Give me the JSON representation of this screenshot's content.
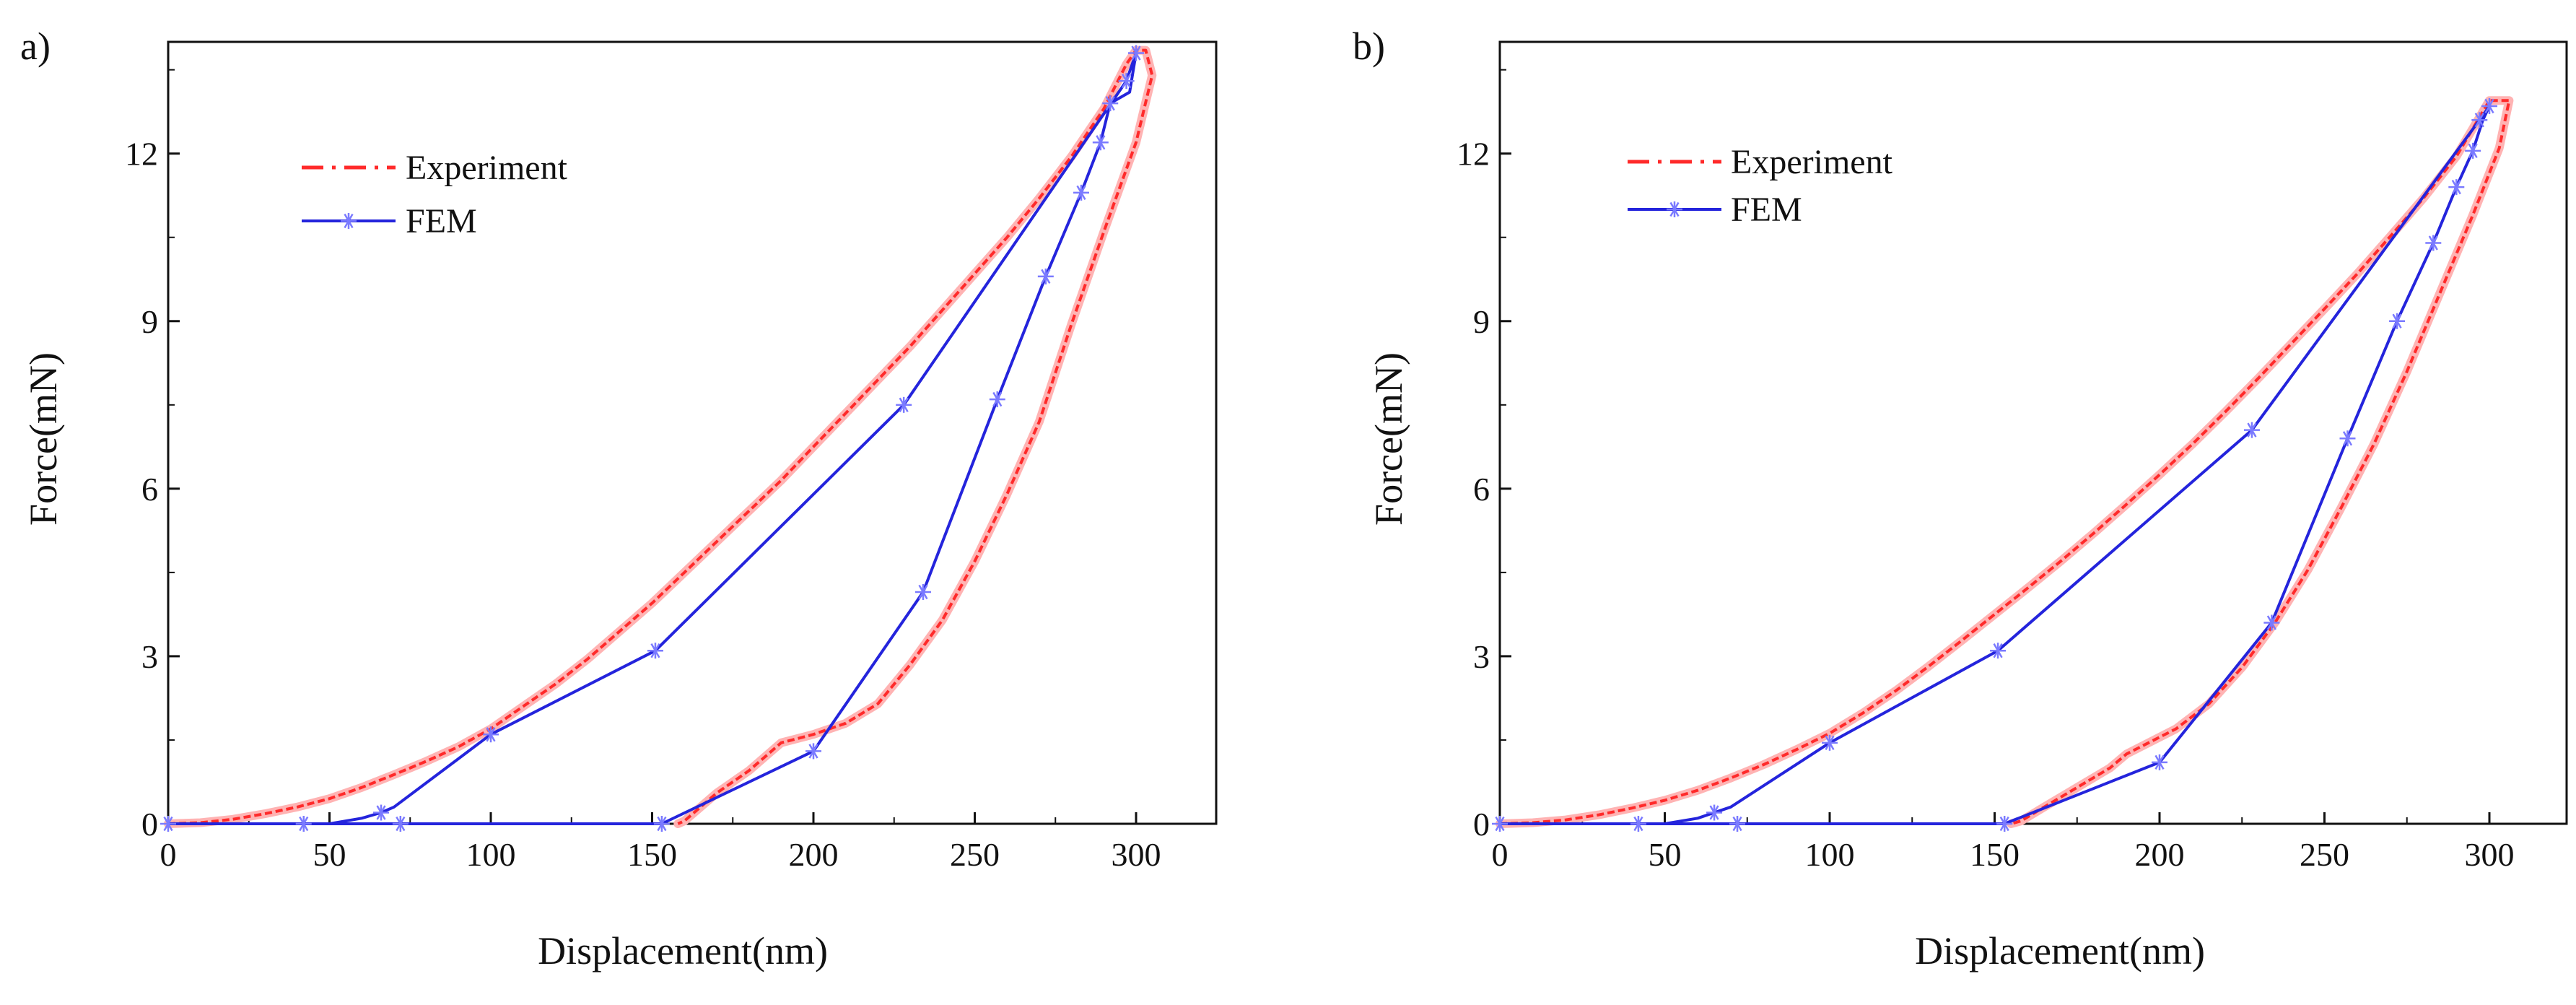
{
  "chart_data": [
    {
      "type": "line",
      "panel_label": "a)",
      "xlabel": "Displacement(nm)",
      "ylabel": "Force(mN)",
      "xlim": [
        0,
        320
      ],
      "ylim": [
        0,
        14
      ],
      "xticks": [
        0,
        50,
        100,
        150,
        200,
        250,
        300
      ],
      "yticks": [
        0,
        3,
        6,
        9,
        12
      ],
      "legend_position": "upper-left",
      "series": [
        {
          "name": "Experiment",
          "color": "#ff2a2a",
          "style": "dash-dot",
          "points": [
            [
              0,
              0
            ],
            [
              10,
              0.02
            ],
            [
              20,
              0.08
            ],
            [
              30,
              0.18
            ],
            [
              40,
              0.3
            ],
            [
              50,
              0.45
            ],
            [
              60,
              0.65
            ],
            [
              70,
              0.88
            ],
            [
              80,
              1.12
            ],
            [
              90,
              1.38
            ],
            [
              100,
              1.7
            ],
            [
              110,
              2.1
            ],
            [
              120,
              2.5
            ],
            [
              130,
              2.95
            ],
            [
              140,
              3.45
            ],
            [
              150,
              3.95
            ],
            [
              160,
              4.5
            ],
            [
              170,
              5.05
            ],
            [
              180,
              5.6
            ],
            [
              190,
              6.15
            ],
            [
              200,
              6.75
            ],
            [
              210,
              7.35
            ],
            [
              220,
              7.95
            ],
            [
              230,
              8.55
            ],
            [
              240,
              9.2
            ],
            [
              250,
              9.85
            ],
            [
              260,
              10.5
            ],
            [
              270,
              11.2
            ],
            [
              280,
              11.95
            ],
            [
              290,
              12.8
            ],
            [
              297,
              13.6
            ],
            [
              300,
              13.85
            ],
            [
              303,
              13.85
            ],
            [
              305,
              13.4
            ],
            [
              300,
              12.2
            ],
            [
              290,
              10.6
            ],
            [
              280,
              8.95
            ],
            [
              270,
              7.2
            ],
            [
              260,
              5.9
            ],
            [
              250,
              4.7
            ],
            [
              240,
              3.65
            ],
            [
              230,
              2.85
            ],
            [
              220,
              2.15
            ],
            [
              210,
              1.8
            ],
            [
              200,
              1.6
            ],
            [
              190,
              1.45
            ],
            [
              187,
              1.3
            ],
            [
              180,
              0.95
            ],
            [
              170,
              0.55
            ],
            [
              165,
              0.3
            ],
            [
              160,
              0.05
            ],
            [
              158,
              0
            ]
          ]
        },
        {
          "name": "FEM",
          "color": "#2424dc",
          "style": "solid-star",
          "points": [
            [
              0,
              0
            ],
            [
              42,
              0
            ],
            [
              50,
              0
            ],
            [
              60,
              0.1
            ],
            [
              66,
              0.2
            ],
            [
              70,
              0.3
            ],
            [
              100,
              1.6
            ],
            [
              151,
              3.1
            ],
            [
              228,
              7.5
            ],
            [
              297,
              13.3
            ],
            [
              300,
              13.8
            ],
            [
              298,
              13.1
            ],
            [
              292,
              12.9
            ],
            [
              289,
              12.2
            ],
            [
              283,
              11.3
            ],
            [
              272,
              9.8
            ],
            [
              257,
              7.6
            ],
            [
              234,
              4.15
            ],
            [
              200,
              1.3
            ],
            [
              153,
              0
            ],
            [
              100,
              0
            ],
            [
              0,
              0
            ]
          ],
          "markers": [
            [
              0,
              0
            ],
            [
              42,
              0
            ],
            [
              72,
              0
            ],
            [
              66,
              0.2
            ],
            [
              100,
              1.6
            ],
            [
              151,
              3.1
            ],
            [
              228,
              7.5
            ],
            [
              297,
              13.3
            ],
            [
              300,
              13.8
            ],
            [
              292,
              12.9
            ],
            [
              289,
              12.2
            ],
            [
              283,
              11.3
            ],
            [
              272,
              9.8
            ],
            [
              257,
              7.6
            ],
            [
              234,
              4.15
            ],
            [
              200,
              1.3
            ],
            [
              153,
              0
            ]
          ]
        }
      ]
    },
    {
      "type": "line",
      "panel_label": "b)",
      "xlabel": "Displacement(nm)",
      "ylabel": "Force(mN)",
      "xlim": [
        0,
        320
      ],
      "ylim": [
        0,
        14
      ],
      "xticks": [
        0,
        50,
        100,
        150,
        200,
        250,
        300
      ],
      "yticks": [
        0,
        3,
        6,
        9,
        12
      ],
      "legend_position": "upper-left",
      "series": [
        {
          "name": "Experiment",
          "color": "#ff2a2a",
          "style": "dash-dot",
          "points": [
            [
              0,
              0
            ],
            [
              10,
              0.02
            ],
            [
              20,
              0.07
            ],
            [
              30,
              0.16
            ],
            [
              40,
              0.28
            ],
            [
              50,
              0.42
            ],
            [
              60,
              0.6
            ],
            [
              70,
              0.82
            ],
            [
              80,
              1.06
            ],
            [
              90,
              1.33
            ],
            [
              100,
              1.62
            ],
            [
              110,
              1.98
            ],
            [
              120,
              2.38
            ],
            [
              130,
              2.82
            ],
            [
              140,
              3.28
            ],
            [
              150,
              3.75
            ],
            [
              160,
              4.22
            ],
            [
              170,
              4.7
            ],
            [
              180,
              5.2
            ],
            [
              190,
              5.72
            ],
            [
              200,
              6.25
            ],
            [
              210,
              6.8
            ],
            [
              220,
              7.38
            ],
            [
              230,
              7.98
            ],
            [
              240,
              8.6
            ],
            [
              250,
              9.22
            ],
            [
              260,
              9.85
            ],
            [
              270,
              10.52
            ],
            [
              280,
              11.2
            ],
            [
              290,
              11.95
            ],
            [
              296,
              12.55
            ],
            [
              300,
              12.95
            ],
            [
              306,
              12.95
            ],
            [
              303,
              12.1
            ],
            [
              295,
              10.9
            ],
            [
              285,
              9.5
            ],
            [
              275,
              8.1
            ],
            [
              265,
              6.8
            ],
            [
              255,
              5.65
            ],
            [
              245,
              4.55
            ],
            [
              235,
              3.6
            ],
            [
              225,
              2.8
            ],
            [
              215,
              2.15
            ],
            [
              205,
              1.7
            ],
            [
              195,
              1.4
            ],
            [
              190,
              1.25
            ],
            [
              185,
              1.0
            ],
            [
              175,
              0.65
            ],
            [
              165,
              0.3
            ],
            [
              158,
              0.05
            ],
            [
              155,
              0
            ]
          ]
        },
        {
          "name": "FEM",
          "color": "#2424dc",
          "style": "solid-star",
          "points": [
            [
              0,
              0
            ],
            [
              42,
              0
            ],
            [
              50,
              0
            ],
            [
              60,
              0.1
            ],
            [
              65,
              0.2
            ],
            [
              70,
              0.3
            ],
            [
              100,
              1.45
            ],
            [
              151,
              3.1
            ],
            [
              228,
              7.05
            ],
            [
              297,
              12.6
            ],
            [
              300,
              12.85
            ],
            [
              298,
              12.6
            ],
            [
              295,
              12.05
            ],
            [
              290,
              11.4
            ],
            [
              283,
              10.4
            ],
            [
              272,
              9.0
            ],
            [
              257,
              6.9
            ],
            [
              234,
              3.6
            ],
            [
              200,
              1.1
            ],
            [
              153,
              0
            ],
            [
              100,
              0
            ],
            [
              0,
              0
            ]
          ],
          "markers": [
            [
              0,
              0
            ],
            [
              42,
              0
            ],
            [
              72,
              0
            ],
            [
              65,
              0.2
            ],
            [
              100,
              1.45
            ],
            [
              151,
              3.1
            ],
            [
              228,
              7.05
            ],
            [
              297,
              12.6
            ],
            [
              300,
              12.85
            ],
            [
              295,
              12.05
            ],
            [
              290,
              11.4
            ],
            [
              283,
              10.4
            ],
            [
              272,
              9.0
            ],
            [
              257,
              6.9
            ],
            [
              234,
              3.6
            ],
            [
              200,
              1.1
            ],
            [
              153,
              0
            ]
          ]
        }
      ]
    }
  ]
}
